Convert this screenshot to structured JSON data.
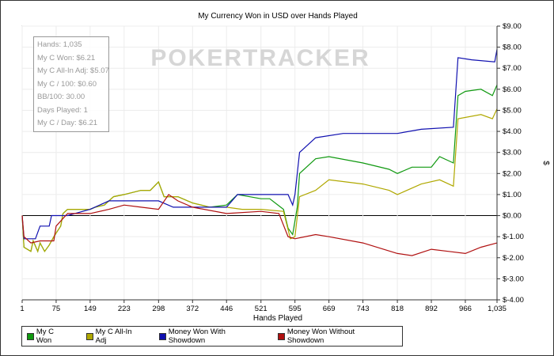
{
  "chart_data": {
    "type": "line",
    "title": "My Currency Won in USD over Hands Played",
    "xlabel": "Hands Played",
    "ylabel": "$",
    "xlim": [
      1,
      1035
    ],
    "ylim": [
      -4,
      9
    ],
    "xticks": [
      "1",
      "75",
      "149",
      "223",
      "298",
      "372",
      "446",
      "521",
      "595",
      "669",
      "743",
      "818",
      "892",
      "966",
      "1,035"
    ],
    "xtick_values": [
      1,
      75,
      149,
      223,
      298,
      372,
      446,
      521,
      595,
      669,
      743,
      818,
      892,
      966,
      1035
    ],
    "yticks": [
      "$9.00",
      "$8.00",
      "$7.00",
      "$6.00",
      "$5.00",
      "$4.00",
      "$3.00",
      "$2.00",
      "$1.00",
      "$0.00",
      "$-1.00",
      "$-2.00",
      "$-3.00",
      "$-4.00"
    ],
    "ytick_values": [
      9,
      8,
      7,
      6,
      5,
      4,
      3,
      2,
      1,
      0,
      -1,
      -2,
      -3,
      -4
    ],
    "grid": true,
    "legend": "bottom",
    "watermark": "POKERTRACKER",
    "series": [
      {
        "name": "My C Won",
        "color": "#109910",
        "points": [
          [
            1,
            0
          ],
          [
            5,
            -1.5
          ],
          [
            20,
            -1.7
          ],
          [
            25,
            -1.2
          ],
          [
            35,
            -1.7
          ],
          [
            40,
            -1.3
          ],
          [
            50,
            -1.7
          ],
          [
            60,
            -1.4
          ],
          [
            70,
            -1.0
          ],
          [
            85,
            -0.5
          ],
          [
            90,
            0.1
          ],
          [
            100,
            0.3
          ],
          [
            149,
            0.3
          ],
          [
            160,
            0.4
          ],
          [
            180,
            0.5
          ],
          [
            200,
            0.9
          ],
          [
            223,
            1.0
          ],
          [
            260,
            1.2
          ],
          [
            280,
            1.2
          ],
          [
            298,
            1.6
          ],
          [
            310,
            0.9
          ],
          [
            340,
            0.9
          ],
          [
            372,
            0.6
          ],
          [
            410,
            0.4
          ],
          [
            446,
            0.5
          ],
          [
            470,
            1.0
          ],
          [
            521,
            0.8
          ],
          [
            540,
            0.8
          ],
          [
            570,
            0.3
          ],
          [
            580,
            -0.6
          ],
          [
            590,
            -0.9
          ],
          [
            600,
            0.4
          ],
          [
            605,
            2.0
          ],
          [
            620,
            2.3
          ],
          [
            640,
            2.7
          ],
          [
            669,
            2.8
          ],
          [
            743,
            2.5
          ],
          [
            800,
            2.2
          ],
          [
            818,
            2.0
          ],
          [
            850,
            2.3
          ],
          [
            892,
            2.3
          ],
          [
            910,
            2.8
          ],
          [
            940,
            2.5
          ],
          [
            950,
            5.7
          ],
          [
            966,
            5.9
          ],
          [
            1000,
            6.0
          ],
          [
            1025,
            5.7
          ],
          [
            1035,
            6.21
          ]
        ]
      },
      {
        "name": "My C All-In Adj",
        "color": "#b0a800",
        "points": [
          [
            1,
            0
          ],
          [
            5,
            -1.5
          ],
          [
            20,
            -1.7
          ],
          [
            25,
            -1.2
          ],
          [
            35,
            -1.7
          ],
          [
            40,
            -1.3
          ],
          [
            50,
            -1.7
          ],
          [
            60,
            -1.4
          ],
          [
            70,
            -1.0
          ],
          [
            85,
            -0.5
          ],
          [
            90,
            0.1
          ],
          [
            100,
            0.3
          ],
          [
            149,
            0.3
          ],
          [
            160,
            0.4
          ],
          [
            180,
            0.5
          ],
          [
            200,
            0.9
          ],
          [
            223,
            1.0
          ],
          [
            260,
            1.2
          ],
          [
            280,
            1.2
          ],
          [
            298,
            1.6
          ],
          [
            310,
            0.9
          ],
          [
            340,
            0.9
          ],
          [
            372,
            0.6
          ],
          [
            410,
            0.4
          ],
          [
            446,
            0.4
          ],
          [
            480,
            0.3
          ],
          [
            521,
            0.3
          ],
          [
            570,
            0.2
          ],
          [
            585,
            -1.1
          ],
          [
            595,
            -1.0
          ],
          [
            605,
            0.9
          ],
          [
            640,
            1.2
          ],
          [
            669,
            1.7
          ],
          [
            743,
            1.5
          ],
          [
            800,
            1.2
          ],
          [
            818,
            1.0
          ],
          [
            870,
            1.5
          ],
          [
            910,
            1.7
          ],
          [
            940,
            1.4
          ],
          [
            950,
            4.6
          ],
          [
            1000,
            4.8
          ],
          [
            1025,
            4.6
          ],
          [
            1035,
            5.07
          ]
        ]
      },
      {
        "name": "Money Won With Showdown",
        "color": "#1010b0",
        "points": [
          [
            1,
            0
          ],
          [
            5,
            -1.1
          ],
          [
            30,
            -1.1
          ],
          [
            40,
            -0.5
          ],
          [
            60,
            -0.5
          ],
          [
            65,
            0
          ],
          [
            100,
            0
          ],
          [
            149,
            0.3
          ],
          [
            190,
            0.7
          ],
          [
            298,
            0.7
          ],
          [
            330,
            0.4
          ],
          [
            446,
            0.4
          ],
          [
            470,
            1.0
          ],
          [
            580,
            1.0
          ],
          [
            590,
            0.5
          ],
          [
            595,
            1.0
          ],
          [
            605,
            3.0
          ],
          [
            620,
            3.3
          ],
          [
            640,
            3.7
          ],
          [
            700,
            3.9
          ],
          [
            818,
            3.9
          ],
          [
            870,
            4.1
          ],
          [
            940,
            4.2
          ],
          [
            950,
            7.5
          ],
          [
            980,
            7.4
          ],
          [
            1030,
            7.3
          ],
          [
            1035,
            7.9
          ]
        ]
      },
      {
        "name": "Money Won Without Showdown",
        "color": "#b01010",
        "points": [
          [
            1,
            0
          ],
          [
            5,
            -1.0
          ],
          [
            20,
            -1.3
          ],
          [
            40,
            -1.2
          ],
          [
            70,
            -1.2
          ],
          [
            75,
            -0.5
          ],
          [
            100,
            0.1
          ],
          [
            149,
            0.1
          ],
          [
            190,
            0.3
          ],
          [
            223,
            0.5
          ],
          [
            260,
            0.4
          ],
          [
            298,
            0.3
          ],
          [
            320,
            1.0
          ],
          [
            340,
            0.7
          ],
          [
            372,
            0.4
          ],
          [
            446,
            0.1
          ],
          [
            521,
            0.2
          ],
          [
            560,
            0.1
          ],
          [
            580,
            -1.0
          ],
          [
            595,
            -1.1
          ],
          [
            640,
            -0.9
          ],
          [
            669,
            -1.0
          ],
          [
            743,
            -1.3
          ],
          [
            818,
            -1.8
          ],
          [
            850,
            -1.9
          ],
          [
            892,
            -1.6
          ],
          [
            930,
            -1.7
          ],
          [
            966,
            -1.8
          ],
          [
            1000,
            -1.5
          ],
          [
            1035,
            -1.3
          ]
        ]
      }
    ]
  },
  "stats": {
    "hands": "Hands: 1,035",
    "won": "My C Won: $6.21",
    "allin": "My C All-In Adj: $5.07",
    "per100": "My C / 100: $0.60",
    "bb100": "BB/100: 30.00",
    "days": "Days Played: 1",
    "perday": "My C / Day: $6.21"
  }
}
